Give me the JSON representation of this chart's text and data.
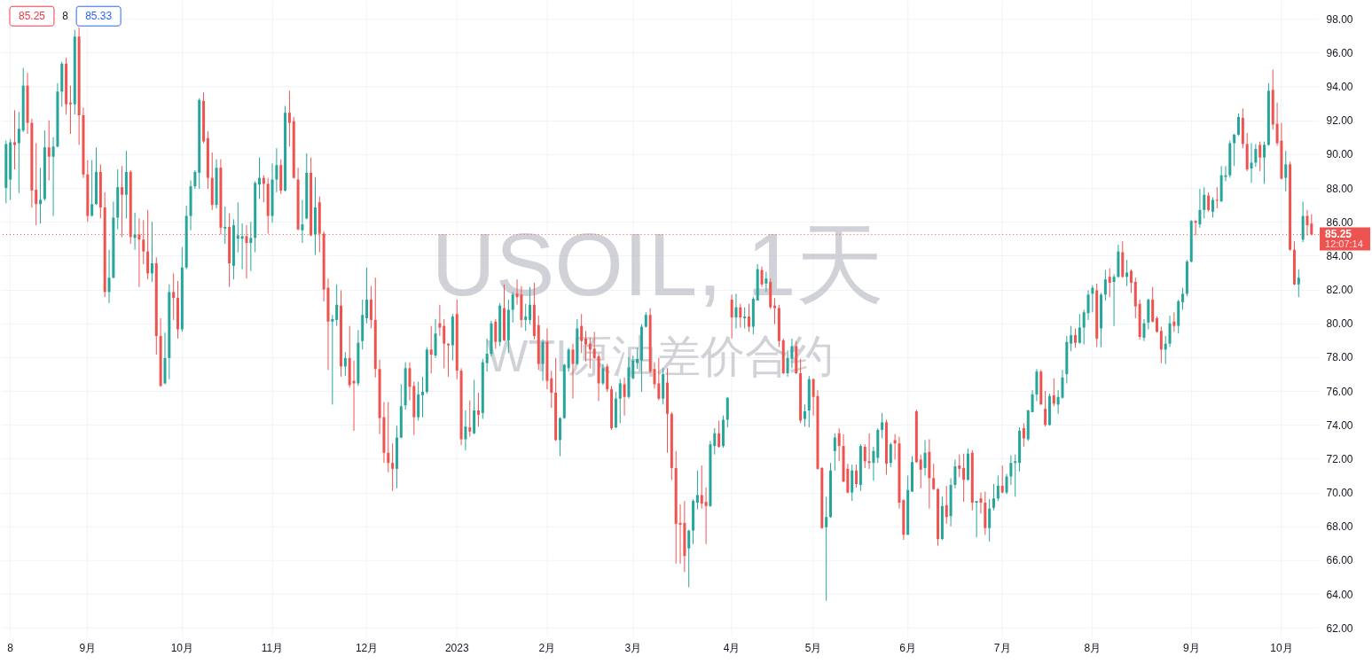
{
  "chart_data": {
    "type": "candlestick",
    "title": "USOIL, 1天",
    "subtitle": "WTI原油差价合约",
    "categories": [
      null,
      "8",
      null,
      null,
      null,
      null,
      null,
      null,
      null,
      null,
      null,
      null,
      null,
      null,
      null,
      null,
      null,
      null,
      null,
      "9月",
      null,
      null,
      null,
      null,
      null,
      null,
      null,
      null,
      null,
      null,
      null,
      null,
      null,
      null,
      null,
      null,
      null,
      null,
      null,
      null,
      null,
      "10月",
      null,
      null,
      null,
      null,
      null,
      null,
      null,
      null,
      null,
      null,
      null,
      null,
      null,
      null,
      null,
      null,
      null,
      null,
      null,
      null,
      "11月",
      null,
      null,
      null,
      null,
      null,
      null,
      null,
      null,
      null,
      null,
      null,
      null,
      null,
      null,
      null,
      null,
      null,
      null,
      null,
      null,
      null,
      "12月",
      null,
      null,
      null,
      null,
      null,
      null,
      null,
      null,
      null,
      null,
      null,
      null,
      null,
      null,
      null,
      null,
      null,
      null,
      null,
      null,
      "2023",
      null,
      null,
      null,
      null,
      null,
      null,
      null,
      null,
      null,
      null,
      null,
      null,
      null,
      null,
      null,
      null,
      null,
      null,
      null,
      null,
      "2月",
      null,
      null,
      null,
      null,
      null,
      null,
      null,
      null,
      null,
      null,
      null,
      null,
      null,
      null,
      null,
      null,
      null,
      null,
      null,
      "3月",
      null,
      null,
      null,
      null,
      null,
      null,
      null,
      null,
      null,
      null,
      null,
      null,
      null,
      null,
      null,
      null,
      null,
      null,
      null,
      null,
      null,
      null,
      "4月",
      null,
      null,
      null,
      null,
      null,
      null,
      null,
      null,
      null,
      null,
      null,
      null,
      null,
      null,
      null,
      null,
      null,
      null,
      "5月",
      null,
      null,
      null,
      null,
      null,
      null,
      null,
      null,
      null,
      null,
      null,
      null,
      null,
      null,
      null,
      null,
      null,
      null,
      null,
      null,
      null,
      "6月",
      null,
      null,
      null,
      null,
      null,
      null,
      null,
      null,
      null,
      null,
      null,
      null,
      null,
      null,
      null,
      null,
      null,
      null,
      null,
      null,
      null,
      "7月",
      null,
      null,
      null,
      null,
      null,
      null,
      null,
      null,
      null,
      null,
      null,
      null,
      null,
      null,
      null,
      null,
      null,
      null,
      null,
      null,
      "8月",
      null,
      null,
      null,
      null,
      null,
      null,
      null,
      null,
      null,
      null,
      null,
      null,
      null,
      null,
      null,
      null,
      null,
      null,
      null,
      null,
      null,
      null,
      "9月",
      null,
      null,
      null,
      null,
      null,
      null,
      null,
      null,
      null,
      null,
      null,
      null,
      null,
      null,
      null,
      null,
      null,
      null,
      null,
      null,
      "10月",
      null,
      null,
      null,
      null,
      null,
      null,
      null
    ],
    "ohlc": [
      [
        88.0,
        90.8,
        87.1,
        90.6
      ],
      [
        88.5,
        90.9,
        87.3,
        90.7
      ],
      [
        90.7,
        92.6,
        89.1,
        90.55
      ],
      [
        90.65,
        92.5,
        87.7,
        91.5
      ],
      [
        91.4,
        95.1,
        91.3,
        94.05
      ],
      [
        94.05,
        94.8,
        91.2,
        91.85
      ],
      [
        91.85,
        92.1,
        86.85,
        87.85
      ],
      [
        87.9,
        90.65,
        85.8,
        87.05
      ],
      [
        87.05,
        89.2,
        85.9,
        87.3
      ],
      [
        87.35,
        91.4,
        87.25,
        90.4
      ],
      [
        90.4,
        92.0,
        88.45,
        89.85
      ],
      [
        89.85,
        91.0,
        86.35,
        90.45
      ],
      [
        90.45,
        94.2,
        90.4,
        93.7
      ],
      [
        93.7,
        95.45,
        92.8,
        95.35
      ],
      [
        95.35,
        95.7,
        92.35,
        92.95
      ],
      [
        93.05,
        94.05,
        91.2,
        92.95
      ],
      [
        92.95,
        97.35,
        92.35,
        96.95
      ],
      [
        96.95,
        97.5,
        90.55,
        92.3
      ],
      [
        92.3,
        92.75,
        88.6,
        88.8
      ],
      [
        88.8,
        89.65,
        86.0,
        86.35
      ],
      [
        86.35,
        89.65,
        86.35,
        87.05
      ],
      [
        87.05,
        90.4,
        87.0,
        88.95
      ],
      [
        88.95,
        89.4,
        86.2,
        86.85
      ],
      [
        86.85,
        87.75,
        81.55,
        81.85
      ],
      [
        81.85,
        84.35,
        81.2,
        82.7
      ],
      [
        82.7,
        87.2,
        82.65,
        86.25
      ],
      [
        86.25,
        89.1,
        85.55,
        88.05
      ],
      [
        88.05,
        89.3,
        85.1,
        87.6
      ],
      [
        87.6,
        90.2,
        86.2,
        88.95
      ],
      [
        88.95,
        89.05,
        84.7,
        85.1
      ],
      [
        85.05,
        86.55,
        84.35,
        85.25
      ],
      [
        85.25,
        86.2,
        82.15,
        84.95
      ],
      [
        84.95,
        86.1,
        83.5,
        84.25
      ],
      [
        84.25,
        86.7,
        82.6,
        82.95
      ],
      [
        82.95,
        86.0,
        82.45,
        83.55
      ],
      [
        83.55,
        83.9,
        78.15,
        79.25
      ],
      [
        79.25,
        80.3,
        76.25,
        76.3
      ],
      [
        76.45,
        79.45,
        76.4,
        77.95
      ],
      [
        77.95,
        82.3,
        76.7,
        81.85
      ],
      [
        81.85,
        82.95,
        80.2,
        81.5
      ],
      [
        81.5,
        82.5,
        79.1,
        79.65
      ],
      [
        79.65,
        84.5,
        79.5,
        83.3
      ],
      [
        83.3,
        86.95,
        83.2,
        86.35
      ],
      [
        86.35,
        88.45,
        85.5,
        88.1
      ],
      [
        88.1,
        89.05,
        87.95,
        88.95
      ],
      [
        88.9,
        93.3,
        87.95,
        93.2
      ],
      [
        93.15,
        93.65,
        90.65,
        90.75
      ],
      [
        90.95,
        91.35,
        87.95,
        88.6
      ],
      [
        88.6,
        90.1,
        86.7,
        87.0
      ],
      [
        87.0,
        89.7,
        86.8,
        89.2
      ],
      [
        89.2,
        89.7,
        85.25,
        85.65
      ],
      [
        85.6,
        86.9,
        84.7,
        85.7
      ],
      [
        85.7,
        86.5,
        82.15,
        83.55
      ],
      [
        83.4,
        86.15,
        82.6,
        85.8
      ],
      [
        85.0,
        87.15,
        84.2,
        85.2
      ],
      [
        85.0,
        85.9,
        83.2,
        85.15
      ],
      [
        85.15,
        85.8,
        82.65,
        84.75
      ],
      [
        84.75,
        86.0,
        83.1,
        85.05
      ],
      [
        85.05,
        88.4,
        84.2,
        88.3
      ],
      [
        88.2,
        89.8,
        87.35,
        88.6
      ],
      [
        88.6,
        88.75,
        87.15,
        88.25
      ],
      [
        88.25,
        88.6,
        85.3,
        86.35
      ],
      [
        86.35,
        89.45,
        85.95,
        88.5
      ],
      [
        88.5,
        90.35,
        87.75,
        89.35
      ],
      [
        89.35,
        89.7,
        87.65,
        87.85
      ],
      [
        87.85,
        92.85,
        87.8,
        92.45
      ],
      [
        92.45,
        93.75,
        90.45,
        91.85
      ],
      [
        91.95,
        92.2,
        88.55,
        88.6
      ],
      [
        88.5,
        89.2,
        85.5,
        85.55
      ],
      [
        85.5,
        87.3,
        84.75,
        85.85
      ],
      [
        86.2,
        90.05,
        86.15,
        88.9
      ],
      [
        88.9,
        89.8,
        85.15,
        85.2
      ],
      [
        85.25,
        88.65,
        84.05,
        86.85
      ],
      [
        87.15,
        87.5,
        84.2,
        85.3
      ],
      [
        85.3,
        85.45,
        81.3,
        82.0
      ],
      [
        82.1,
        82.65,
        77.25,
        80.1
      ],
      [
        80.1,
        80.5,
        75.2,
        80.25
      ],
      [
        80.2,
        82.3,
        79.85,
        81.1
      ],
      [
        81.05,
        81.95,
        76.85,
        77.45
      ],
      [
        77.45,
        78.3,
        76.9,
        77.95
      ],
      [
        77.95,
        79.85,
        76.2,
        76.35
      ],
      [
        76.6,
        77.8,
        73.65,
        76.45
      ],
      [
        76.45,
        79.6,
        76.3,
        78.85
      ],
      [
        78.95,
        81.4,
        78.45,
        80.5
      ],
      [
        80.3,
        83.3,
        80.0,
        81.4
      ],
      [
        81.4,
        82.2,
        79.7,
        80.2
      ],
      [
        80.2,
        82.7,
        76.8,
        77.3
      ],
      [
        77.3,
        77.85,
        73.45,
        74.4
      ],
      [
        74.45,
        75.35,
        71.75,
        72.35
      ],
      [
        72.35,
        75.35,
        71.2,
        71.75
      ],
      [
        71.75,
        72.9,
        70.1,
        71.4
      ],
      [
        71.4,
        73.95,
        70.25,
        73.25
      ],
      [
        73.25,
        76.4,
        73.2,
        75.1
      ],
      [
        75.15,
        77.7,
        74.9,
        77.35
      ],
      [
        77.35,
        77.7,
        75.45,
        76.25
      ],
      [
        76.3,
        76.55,
        73.4,
        74.45
      ],
      [
        74.45,
        76.55,
        74.25,
        75.8
      ],
      [
        75.75,
        76.85,
        74.45,
        75.95
      ],
      [
        75.95,
        78.6,
        75.85,
        78.45
      ],
      [
        78.45,
        79.85,
        77.05,
        78.15
      ],
      [
        78.1,
        80.25,
        77.95,
        79.4
      ],
      [
        80.0,
        81.1,
        79.25,
        79.75
      ],
      [
        79.85,
        80.25,
        77.35,
        78.8
      ],
      [
        78.8,
        78.8,
        76.85,
        78.7
      ],
      [
        78.7,
        80.55,
        77.8,
        80.4
      ],
      [
        80.55,
        81.4,
        76.7,
        77.2
      ],
      [
        77.2,
        77.35,
        72.8,
        73.15
      ],
      [
        73.15,
        74.85,
        72.5,
        73.9
      ],
      [
        73.85,
        75.45,
        73.3,
        73.6
      ],
      [
        73.5,
        76.65,
        73.45,
        74.85
      ],
      [
        74.85,
        75.9,
        73.9,
        74.6
      ],
      [
        74.7,
        77.9,
        74.35,
        77.7
      ],
      [
        77.65,
        79.1,
        77.15,
        78.2
      ],
      [
        78.2,
        80.15,
        78.05,
        80.0
      ],
      [
        80.1,
        80.25,
        78.5,
        78.9
      ],
      [
        78.9,
        81.2,
        78.65,
        81.05
      ],
      [
        80.9,
        82.3,
        78.95,
        79.0
      ],
      [
        79.0,
        81.4,
        78.25,
        80.8
      ],
      [
        80.8,
        81.85,
        80.05,
        81.7
      ],
      [
        81.75,
        82.6,
        81.1,
        81.55
      ],
      [
        81.7,
        82.2,
        79.75,
        80.2
      ],
      [
        80.2,
        81.15,
        79.55,
        80.4
      ],
      [
        80.2,
        82.15,
        79.95,
        81.1
      ],
      [
        81.1,
        82.4,
        79.05,
        79.25
      ],
      [
        79.9,
        80.45,
        77.25,
        77.6
      ],
      [
        77.6,
        79.05,
        76.6,
        78.9
      ],
      [
        78.9,
        79.7,
        76.1,
        76.6
      ],
      [
        76.75,
        77.2,
        75.0,
        75.9
      ],
      [
        75.9,
        77.95,
        73.05,
        73.1
      ],
      [
        73.1,
        74.45,
        72.15,
        74.4
      ],
      [
        74.4,
        77.6,
        74.35,
        77.55
      ],
      [
        77.35,
        78.55,
        77.15,
        78.45
      ],
      [
        78.45,
        78.8,
        75.55,
        77.6
      ],
      [
        77.6,
        80.25,
        77.55,
        79.7
      ],
      [
        79.85,
        80.55,
        78.25,
        78.95
      ],
      [
        79.1,
        79.55,
        77.75,
        78.75
      ],
      [
        78.8,
        79.15,
        77.35,
        78.45
      ],
      [
        78.5,
        79.5,
        77.9,
        77.95
      ],
      [
        78.05,
        78.2,
        75.4,
        76.45
      ],
      [
        76.45,
        77.6,
        76.35,
        77.35
      ],
      [
        77.45,
        77.6,
        75.95,
        76.1
      ],
      [
        76.1,
        76.3,
        73.7,
        73.8
      ],
      [
        73.85,
        75.95,
        73.8,
        75.55
      ],
      [
        75.55,
        76.7,
        74.1,
        76.45
      ],
      [
        76.4,
        76.8,
        74.55,
        75.65
      ],
      [
        75.65,
        78.0,
        75.55,
        77.4
      ],
      [
        76.75,
        78.1,
        76.7,
        77.8
      ],
      [
        77.65,
        78.55,
        77.3,
        77.9
      ],
      [
        77.8,
        79.95,
        75.95,
        79.8
      ],
      [
        79.8,
        80.65,
        79.75,
        80.5
      ],
      [
        80.5,
        80.9,
        77.05,
        77.15
      ],
      [
        77.3,
        77.7,
        76.15,
        76.4
      ],
      [
        76.45,
        77.95,
        75.45,
        75.55
      ],
      [
        75.55,
        77.35,
        75.2,
        77.0
      ],
      [
        76.5,
        77.35,
        72.35,
        74.65
      ],
      [
        74.65,
        74.75,
        70.75,
        71.45
      ],
      [
        71.45,
        72.45,
        65.8,
        68.15
      ],
      [
        68.2,
        69.3,
        65.8,
        68.1
      ],
      [
        68.2,
        69.5,
        65.3,
        66.25
      ],
      [
        66.7,
        67.8,
        64.4,
        67.75
      ],
      [
        67.75,
        69.6,
        66.95,
        69.5
      ],
      [
        69.4,
        71.3,
        69.0,
        69.85
      ],
      [
        69.85,
        71.6,
        69.05,
        69.35
      ],
      [
        69.45,
        70.3,
        66.95,
        69.2
      ],
      [
        69.2,
        73.05,
        69.15,
        72.85
      ],
      [
        72.75,
        73.8,
        72.25,
        73.5
      ],
      [
        73.5,
        74.25,
        72.65,
        72.7
      ],
      [
        72.75,
        74.55,
        72.65,
        74.3
      ],
      [
        74.3,
        75.65,
        73.85,
        75.6
      ],
      [
        81.4,
        81.7,
        79.1,
        80.35
      ],
      [
        80.35,
        81.75,
        79.7,
        80.95
      ],
      [
        80.95,
        81.15,
        79.75,
        80.35
      ],
      [
        80.3,
        80.95,
        79.7,
        80.4
      ],
      [
        80.4,
        81.15,
        79.5,
        79.8
      ],
      [
        79.8,
        81.55,
        79.35,
        81.45
      ],
      [
        81.35,
        83.5,
        81.35,
        83.2
      ],
      [
        83.15,
        83.35,
        82.15,
        82.3
      ],
      [
        82.35,
        83.05,
        81.85,
        82.65
      ],
      [
        82.45,
        82.65,
        80.85,
        80.95
      ],
      [
        81.05,
        81.5,
        79.95,
        80.9
      ],
      [
        80.9,
        81.1,
        78.6,
        78.95
      ],
      [
        79.0,
        79.1,
        77.0,
        77.05
      ],
      [
        77.05,
        78.4,
        76.85,
        77.95
      ],
      [
        77.9,
        79.1,
        77.35,
        78.65
      ],
      [
        78.65,
        78.95,
        77.0,
        77.05
      ],
      [
        77.05,
        77.9,
        74.1,
        74.25
      ],
      [
        74.35,
        75.2,
        73.9,
        74.8
      ],
      [
        74.85,
        76.9,
        73.85,
        76.7
      ],
      [
        76.7,
        76.75,
        74.55,
        75.65
      ],
      [
        75.7,
        76.05,
        71.35,
        71.4
      ],
      [
        71.45,
        71.5,
        67.85,
        67.9
      ],
      [
        67.95,
        69.75,
        63.6,
        68.55
      ],
      [
        68.55,
        71.75,
        68.5,
        71.3
      ],
      [
        72.45,
        73.5,
        71.3,
        73.25
      ],
      [
        73.5,
        73.8,
        71.85,
        72.75
      ],
      [
        72.75,
        73.45,
        70.6,
        70.65
      ],
      [
        71.4,
        71.7,
        69.95,
        70.0
      ],
      [
        70.0,
        71.65,
        69.5,
        71.3
      ],
      [
        71.3,
        71.65,
        70.3,
        70.5
      ],
      [
        70.45,
        72.85,
        70.1,
        72.75
      ],
      [
        72.7,
        72.85,
        71.45,
        71.85
      ],
      [
        71.85,
        73.5,
        71.4,
        71.75
      ],
      [
        71.75,
        72.7,
        70.7,
        72.45
      ],
      [
        72.05,
        73.8,
        71.75,
        73.7
      ],
      [
        73.7,
        74.7,
        73.2,
        74.15
      ],
      [
        74.15,
        74.3,
        71.05,
        71.7
      ],
      [
        71.75,
        72.95,
        71.5,
        72.85
      ],
      [
        73.1,
        73.45,
        71.95,
        72.9
      ],
      [
        72.9,
        73.3,
        69.05,
        69.4
      ],
      [
        69.55,
        69.6,
        67.2,
        67.5
      ],
      [
        67.5,
        71.0,
        67.5,
        70.15
      ],
      [
        70.05,
        72.15,
        70.05,
        71.8
      ],
      [
        74.8,
        74.9,
        71.75,
        71.8
      ],
      [
        71.95,
        72.25,
        70.25,
        71.35
      ],
      [
        71.45,
        73.1,
        71.0,
        72.35
      ],
      [
        72.4,
        73.15,
        69.05,
        70.85
      ],
      [
        70.85,
        71.7,
        70.15,
        70.2
      ],
      [
        70.2,
        70.25,
        66.85,
        67.25
      ],
      [
        67.25,
        69.75,
        67.2,
        69.2
      ],
      [
        69.25,
        70.4,
        68.15,
        68.55
      ],
      [
        68.6,
        70.85,
        68.0,
        70.45
      ],
      [
        70.45,
        71.95,
        70.25,
        71.55
      ],
      [
        71.6,
        72.25,
        70.9,
        71.4
      ],
      [
        71.45,
        72.3,
        69.45,
        70.75
      ],
      [
        70.75,
        72.6,
        70.7,
        72.3
      ],
      [
        72.35,
        72.5,
        68.95,
        69.4
      ],
      [
        69.4,
        69.5,
        67.35,
        69.5
      ],
      [
        69.65,
        70.0,
        68.75,
        69.4
      ],
      [
        69.4,
        70.05,
        67.5,
        67.9
      ],
      [
        67.9,
        69.6,
        67.1,
        69.05
      ],
      [
        69.1,
        70.5,
        68.95,
        69.65
      ],
      [
        69.65,
        71.0,
        69.5,
        70.4
      ],
      [
        70.4,
        71.6,
        69.95,
        70.0
      ],
      [
        70.0,
        71.1,
        69.9,
        70.95
      ],
      [
        70.95,
        72.2,
        70.45,
        71.75
      ],
      [
        71.75,
        72.25,
        69.75,
        71.85
      ],
      [
        71.75,
        73.85,
        71.25,
        73.65
      ],
      [
        73.8,
        74.1,
        72.7,
        73.2
      ],
      [
        73.15,
        74.9,
        73.05,
        74.85
      ],
      [
        74.75,
        76.05,
        74.75,
        75.8
      ],
      [
        75.8,
        77.3,
        75.4,
        77.15
      ],
      [
        77.15,
        77.25,
        75.2,
        75.2
      ],
      [
        74.95,
        76.0,
        73.9,
        74.0
      ],
      [
        74.0,
        75.85,
        73.95,
        75.7
      ],
      [
        75.75,
        76.75,
        75.1,
        75.25
      ],
      [
        75.2,
        76.05,
        74.65,
        75.65
      ],
      [
        75.6,
        77.25,
        75.55,
        76.8
      ],
      [
        77.0,
        79.25,
        76.45,
        78.9
      ],
      [
        78.8,
        79.85,
        78.35,
        79.3
      ],
      [
        79.3,
        79.7,
        78.55,
        78.85
      ],
      [
        78.85,
        80.55,
        78.8,
        79.75
      ],
      [
        79.75,
        80.8,
        78.75,
        80.65
      ],
      [
        80.6,
        81.95,
        80.2,
        81.7
      ],
      [
        81.75,
        82.25,
        80.65,
        82.1
      ],
      [
        81.95,
        82.35,
        78.6,
        79.1
      ],
      [
        79.7,
        81.8,
        78.6,
        81.7
      ],
      [
        81.7,
        83.15,
        81.35,
        82.6
      ],
      [
        82.75,
        83.25,
        81.55,
        82.4
      ],
      [
        82.45,
        82.9,
        79.85,
        82.75
      ],
      [
        82.75,
        84.65,
        82.7,
        84.25
      ],
      [
        84.2,
        84.85,
        82.7,
        82.75
      ],
      [
        82.75,
        83.75,
        82.2,
        83.0
      ],
      [
        83.1,
        83.2,
        81.8,
        82.4
      ],
      [
        82.45,
        82.7,
        80.3,
        81.0
      ],
      [
        81.15,
        81.4,
        79.05,
        79.2
      ],
      [
        79.15,
        80.25,
        78.95,
        80.0
      ],
      [
        80.05,
        81.45,
        79.65,
        81.4
      ],
      [
        81.4,
        82.15,
        80.05,
        80.1
      ],
      [
        80.3,
        80.4,
        79.45,
        79.5
      ],
      [
        79.55,
        79.8,
        77.65,
        78.45
      ],
      [
        78.45,
        79.25,
        77.6,
        78.8
      ],
      [
        78.8,
        80.45,
        78.6,
        80.0
      ],
      [
        80.1,
        80.65,
        79.5,
        79.85
      ],
      [
        79.85,
        81.4,
        79.4,
        81.3
      ],
      [
        81.25,
        82.1,
        80.8,
        81.75
      ],
      [
        81.75,
        83.75,
        81.6,
        83.65
      ],
      [
        83.65,
        86.1,
        83.6,
        86.05
      ],
      [
        86.05,
        86.1,
        85.2,
        85.95
      ],
      [
        85.85,
        87.95,
        85.65,
        86.7
      ],
      [
        86.7,
        88.05,
        86.2,
        87.6
      ],
      [
        87.55,
        87.75,
        86.6,
        86.7
      ],
      [
        86.6,
        87.45,
        86.25,
        87.3
      ],
      [
        87.3,
        88.05,
        86.8,
        87.25
      ],
      [
        87.2,
        89.3,
        87.2,
        88.75
      ],
      [
        88.65,
        89.3,
        88.4,
        88.75
      ],
      [
        88.75,
        90.8,
        88.6,
        90.65
      ],
      [
        90.65,
        91.2,
        89.3,
        91.15
      ],
      [
        91.15,
        92.4,
        91.1,
        92.2
      ],
      [
        92.15,
        92.7,
        90.35,
        90.6
      ],
      [
        90.6,
        91.25,
        89.0,
        89.1
      ],
      [
        89.15,
        90.65,
        88.3,
        89.5
      ],
      [
        89.5,
        90.6,
        89.25,
        90.3
      ],
      [
        90.55,
        90.75,
        89.0,
        89.8
      ],
      [
        89.8,
        90.75,
        88.25,
        90.55
      ],
      [
        90.55,
        94.2,
        90.5,
        93.75
      ],
      [
        93.8,
        95.0,
        91.45,
        91.75
      ],
      [
        91.8,
        93.05,
        90.5,
        90.65
      ],
      [
        90.8,
        91.85,
        88.5,
        88.55
      ],
      [
        88.6,
        90.2,
        87.8,
        89.4
      ],
      [
        89.4,
        89.55,
        84.3,
        84.35
      ],
      [
        84.35,
        84.85,
        82.25,
        82.3
      ],
      [
        82.3,
        83.2,
        81.55,
        82.7
      ],
      [
        84.95,
        87.2,
        84.8,
        86.35
      ],
      [
        86.35,
        86.7,
        85.2,
        85.8
      ],
      [
        85.9,
        86.45,
        85.2,
        85.25
      ]
    ],
    "colors": [
      "#26a69a",
      "#26a69a",
      "#ef5350",
      "#26a69a",
      "#26a69a",
      "#ef5350",
      "#ef5350",
      "#ef5350",
      "#26a69a",
      "#26a69a",
      "#ef5350",
      "#26a69a",
      "#26a69a",
      "#26a69a",
      "#ef5350",
      "#ef5350",
      "#26a69a",
      "#ef5350",
      "#ef5350",
      "#ef5350",
      "#26a69a",
      "#26a69a",
      "#ef5350",
      "#ef5350",
      "#26a69a",
      "#26a69a",
      "#26a69a",
      "#ef5350",
      "#26a69a",
      "#ef5350",
      "#26a69a",
      "#ef5350",
      "#ef5350",
      "#ef5350",
      "#26a69a",
      "#ef5350",
      "#ef5350",
      "#26a69a",
      "#26a69a",
      "#ef5350",
      "#ef5350",
      "#26a69a",
      "#26a69a",
      "#26a69a",
      "#26a69a",
      "#26a69a",
      "#ef5350",
      "#ef5350",
      "#ef5350",
      "#26a69a",
      "#ef5350",
      "#26a69a",
      "#ef5350",
      "#26a69a",
      "#26a69a",
      "#26a69a",
      "#ef5350",
      "#26a69a",
      "#26a69a",
      "#26a69a",
      "#ef5350",
      "#ef5350",
      "#26a69a",
      "#26a69a",
      "#ef5350",
      "#26a69a",
      "#ef5350",
      "#ef5350",
      "#ef5350",
      "#26a69a",
      "#26a69a",
      "#ef5350",
      "#26a69a",
      "#ef5350",
      "#ef5350",
      "#ef5350",
      "#26a69a",
      "#26a69a",
      "#ef5350",
      "#26a69a",
      "#ef5350",
      "#ef5350",
      "#26a69a",
      "#26a69a",
      "#26a69a",
      "#ef5350",
      "#ef5350",
      "#ef5350",
      "#ef5350",
      "#ef5350",
      "#ef5350",
      "#26a69a",
      "#26a69a",
      "#26a69a",
      "#ef5350",
      "#ef5350",
      "#26a69a",
      "#26a69a",
      "#26a69a",
      "#ef5350",
      "#26a69a",
      "#ef5350",
      "#ef5350",
      "#ef5350",
      "#26a69a",
      "#ef5350",
      "#ef5350",
      "#26a69a",
      "#ef5350",
      "#26a69a",
      "#ef5350",
      "#26a69a",
      "#26a69a",
      "#26a69a",
      "#ef5350",
      "#26a69a",
      "#ef5350",
      "#26a69a",
      "#26a69a",
      "#ef5350",
      "#ef5350",
      "#26a69a",
      "#26a69a",
      "#ef5350",
      "#ef5350",
      "#26a69a",
      "#ef5350",
      "#ef5350",
      "#ef5350",
      "#26a69a",
      "#26a69a",
      "#26a69a",
      "#ef5350",
      "#26a69a",
      "#ef5350",
      "#ef5350",
      "#ef5350",
      "#ef5350",
      "#ef5350",
      "#26a69a",
      "#ef5350",
      "#ef5350",
      "#26a69a",
      "#26a69a",
      "#ef5350",
      "#26a69a",
      "#26a69a",
      "#26a69a",
      "#26a69a",
      "#26a69a",
      "#ef5350",
      "#ef5350",
      "#ef5350",
      "#26a69a",
      "#ef5350",
      "#ef5350",
      "#ef5350",
      "#ef5350",
      "#ef5350",
      "#26a69a",
      "#26a69a",
      "#26a69a",
      "#ef5350",
      "#ef5350",
      "#26a69a",
      "#26a69a",
      "#ef5350",
      "#26a69a",
      "#26a69a",
      "#ef5350",
      "#26a69a",
      "#ef5350",
      "#26a69a",
      "#ef5350",
      "#26a69a",
      "#26a69a",
      "#ef5350",
      "#26a69a",
      "#ef5350",
      "#ef5350",
      "#ef5350",
      "#ef5350",
      "#26a69a",
      "#26a69a",
      "#ef5350",
      "#ef5350",
      "#26a69a",
      "#26a69a",
      "#ef5350",
      "#ef5350",
      "#ef5350",
      "#26a69a",
      "#26a69a",
      "#26a69a",
      "#ef5350",
      "#ef5350",
      "#ef5350",
      "#26a69a",
      "#ef5350",
      "#26a69a",
      "#ef5350",
      "#ef5350",
      "#26a69a",
      "#26a69a",
      "#26a69a",
      "#ef5350",
      "#26a69a",
      "#ef5350",
      "#ef5350",
      "#ef5350",
      "#26a69a",
      "#26a69a",
      "#ef5350",
      "#ef5350",
      "#26a69a",
      "#ef5350",
      "#ef5350",
      "#ef5350",
      "#26a69a",
      "#ef5350",
      "#26a69a",
      "#26a69a",
      "#ef5350",
      "#ef5350",
      "#26a69a",
      "#ef5350",
      "#26a69a",
      "#ef5350",
      "#ef5350",
      "#26a69a",
      "#26a69a",
      "#26a69a",
      "#ef5350",
      "#26a69a",
      "#26a69a",
      "#26a69a",
      "#26a69a",
      "#ef5350",
      "#26a69a",
      "#26a69a",
      "#26a69a",
      "#ef5350",
      "#ef5350",
      "#26a69a",
      "#ef5350",
      "#26a69a",
      "#26a69a",
      "#26a69a",
      "#26a69a",
      "#ef5350",
      "#26a69a",
      "#26a69a",
      "#26a69a",
      "#26a69a",
      "#ef5350",
      "#26a69a",
      "#26a69a",
      "#ef5350",
      "#26a69a",
      "#26a69a",
      "#ef5350",
      "#26a69a",
      "#ef5350",
      "#ef5350",
      "#ef5350",
      "#26a69a",
      "#26a69a",
      "#ef5350",
      "#ef5350",
      "#ef5350",
      "#26a69a",
      "#26a69a",
      "#ef5350",
      "#26a69a",
      "#26a69a",
      "#26a69a",
      "#26a69a",
      "#ef5350",
      "#26a69a",
      "#26a69a",
      "#ef5350",
      "#26a69a",
      "#ef5350",
      "#26a69a",
      "#26a69a",
      "#26a69a",
      "#26a69a",
      "#26a69a",
      "#ef5350",
      "#ef5350",
      "#26a69a",
      "#26a69a",
      "#ef5350",
      "#26a69a",
      "#26a69a",
      "#ef5350",
      "#ef5350",
      "#ef5350",
      "#26a69a",
      "#ef5350",
      "#ef5350",
      "#26a69a",
      "#26a69a",
      "#ef5350",
      "#ef5350"
    ],
    "ylim": [
      61.5,
      99.1
    ],
    "yticks": [
      {
        "value": 62,
        "label": "62.00"
      },
      {
        "value": 64,
        "label": "64.00"
      },
      {
        "value": 66,
        "label": "66.00"
      },
      {
        "value": 68,
        "label": "68.00"
      },
      {
        "value": 70,
        "label": "70.00"
      },
      {
        "value": 72,
        "label": "72.00"
      },
      {
        "value": 74,
        "label": "74.00"
      },
      {
        "value": 76,
        "label": "76.00"
      },
      {
        "value": 78,
        "label": "78.00"
      },
      {
        "value": 80,
        "label": "80.00"
      },
      {
        "value": 82,
        "label": "82.00"
      },
      {
        "value": 84,
        "label": "84.00"
      },
      {
        "value": 86,
        "label": "86.00"
      },
      {
        "value": 88,
        "label": "88.00"
      },
      {
        "value": 90,
        "label": "90.00"
      },
      {
        "value": 92,
        "label": "92.00"
      },
      {
        "value": 94,
        "label": "94.00"
      },
      {
        "value": 96,
        "label": "96.00"
      },
      {
        "value": 98,
        "label": "98.00"
      }
    ],
    "grid": true,
    "ref_lines": [
      {
        "axis": "y",
        "value": 85.25,
        "label": "85.25",
        "color": "#ef5350",
        "line_style": "dotted"
      }
    ],
    "annotations": [
      "85.25",
      "8",
      "85.33",
      "12:07:14"
    ]
  }
}
